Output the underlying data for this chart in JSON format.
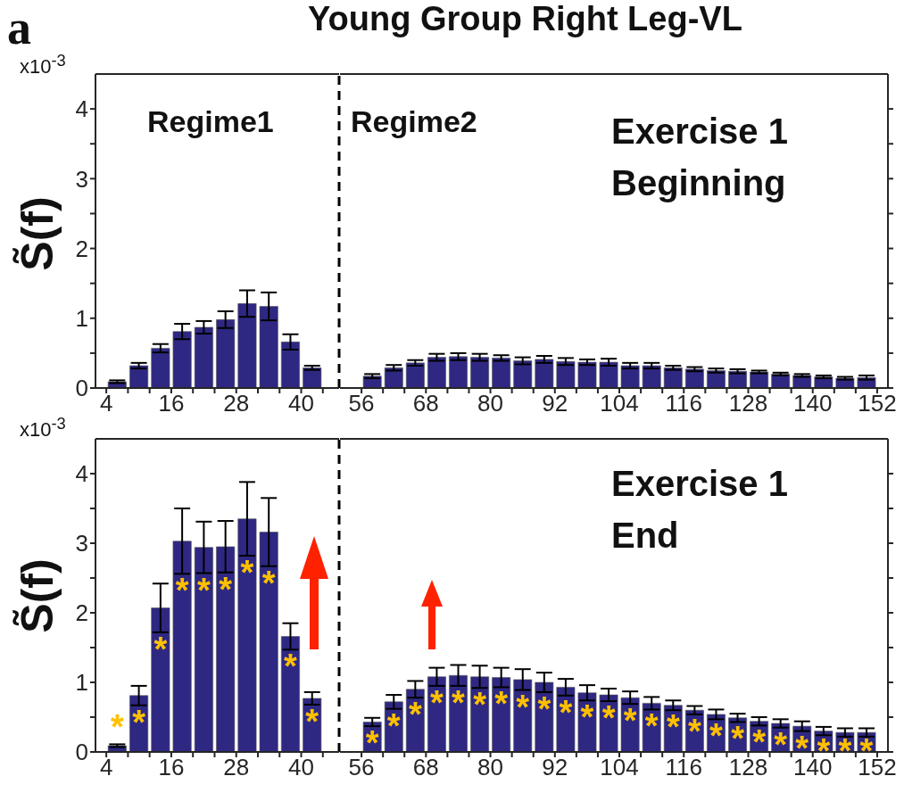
{
  "chart_data": [
    {
      "type": "bar",
      "ylabel": "S̃(f)",
      "annotations": [
        "a",
        "x10$^{-3}$",
        "Regime1"
      ],
      "x": [
        6,
        10,
        14,
        18,
        22,
        26,
        30,
        34,
        38,
        42
      ],
      "values": [
        0.09,
        0.32,
        0.57,
        0.81,
        0.87,
        0.98,
        1.21,
        1.17,
        0.66,
        0.29
      ],
      "errors": [
        0.02,
        0.04,
        0.06,
        0.11,
        0.09,
        0.12,
        0.19,
        0.2,
        0.11,
        0.03
      ],
      "color": "#2e2883",
      "xlim": [
        2,
        47
      ],
      "xticks": [
        4,
        {
          "value": 8,
          "label": null
        },
        {
          "value": 12,
          "label": null
        },
        16,
        {
          "value": 20,
          "label": null
        },
        {
          "value": 24,
          "label": null
        },
        28,
        {
          "value": 32,
          "label": null
        },
        {
          "value": 36,
          "label": null
        },
        40,
        {
          "value": 44,
          "label": null
        }
      ],
      "ylim": [
        0,
        4.5
      ],
      "yticks": [
        0,
        {
          "value": 0.5,
          "label": null
        },
        1,
        {
          "value": 1.5,
          "label": null
        },
        2,
        {
          "value": 2.5,
          "label": null
        },
        3,
        {
          "value": 3.5,
          "label": null
        },
        4
      ],
      "ref_lines": [
        {
          "axis": "x",
          "value": 47,
          "color": "#000000",
          "line_style": "dashed"
        }
      ]
    },
    {
      "type": "bar",
      "title": "Young Group Right Leg-VL",
      "annotations": [
        "Regime2",
        "Exercise 1\nBeginning"
      ],
      "x": [
        58,
        62,
        66,
        70,
        74,
        78,
        82,
        86,
        90,
        94,
        98,
        102,
        106,
        110,
        114,
        118,
        122,
        126,
        130,
        134,
        138,
        142,
        146,
        150
      ],
      "values": [
        0.17,
        0.29,
        0.36,
        0.44,
        0.45,
        0.44,
        0.43,
        0.39,
        0.41,
        0.38,
        0.37,
        0.37,
        0.32,
        0.32,
        0.29,
        0.27,
        0.25,
        0.24,
        0.23,
        0.2,
        0.18,
        0.16,
        0.14,
        0.15
      ],
      "errors": [
        0.03,
        0.04,
        0.04,
        0.05,
        0.05,
        0.05,
        0.04,
        0.05,
        0.05,
        0.05,
        0.04,
        0.05,
        0.04,
        0.04,
        0.03,
        0.03,
        0.03,
        0.03,
        0.02,
        0.02,
        0.02,
        0.02,
        0.02,
        0.03
      ],
      "color": "#2e2883",
      "xlim": [
        52,
        154
      ],
      "xticks": [
        56,
        {
          "value": 60,
          "label": null
        },
        {
          "value": 64,
          "label": null
        },
        68,
        {
          "value": 72,
          "label": null
        },
        {
          "value": 76,
          "label": null
        },
        80,
        {
          "value": 84,
          "label": null
        },
        {
          "value": 88,
          "label": null
        },
        92,
        {
          "value": 96,
          "label": null
        },
        {
          "value": 100,
          "label": null
        },
        104,
        {
          "value": 108,
          "label": null
        },
        {
          "value": 112,
          "label": null
        },
        116,
        {
          "value": 120,
          "label": null
        },
        {
          "value": 124,
          "label": null
        },
        128,
        {
          "value": 132,
          "label": null
        },
        {
          "value": 136,
          "label": null
        },
        140,
        {
          "value": 144,
          "label": null
        },
        {
          "value": 148,
          "label": null
        },
        152
      ],
      "ylim": [
        0,
        4.5
      ],
      "yticks": [
        0,
        {
          "value": 0.5,
          "label": null
        },
        1,
        {
          "value": 1.5,
          "label": null
        },
        2,
        {
          "value": 2.5,
          "label": null
        },
        3,
        {
          "value": 3.5,
          "label": null
        },
        4
      ],
      "tick_labels": "x"
    },
    {
      "type": "bar",
      "ylabel": "S̃(f)",
      "annotations": [
        "x10$^{-3}$"
      ],
      "x": [
        6,
        10,
        14,
        18,
        22,
        26,
        30,
        34,
        38,
        42
      ],
      "values": [
        0.09,
        0.81,
        2.07,
        3.03,
        2.94,
        2.95,
        3.35,
        3.16,
        1.66,
        0.77
      ],
      "errors": [
        0.02,
        0.14,
        0.35,
        0.47,
        0.37,
        0.37,
        0.53,
        0.49,
        0.19,
        0.09
      ],
      "value_labels": [
        "*",
        "*",
        "*",
        "*",
        "*",
        "*",
        "*",
        "*",
        "*",
        "*"
      ],
      "color": "#2e2883",
      "xlim": [
        2,
        47
      ],
      "xticks": [
        4,
        {
          "value": 8,
          "label": null
        },
        {
          "value": 12,
          "label": null
        },
        16,
        {
          "value": 20,
          "label": null
        },
        {
          "value": 24,
          "label": null
        },
        28,
        {
          "value": 32,
          "label": null
        },
        {
          "value": 36,
          "label": null
        },
        40,
        {
          "value": 44,
          "label": null
        }
      ],
      "ylim": [
        0,
        4.5
      ],
      "yticks": [
        0,
        {
          "value": 0.5,
          "label": null
        },
        1,
        {
          "value": 1.5,
          "label": null
        },
        2,
        {
          "value": 2.5,
          "label": null
        },
        3,
        {
          "value": 3.5,
          "label": null
        },
        4
      ],
      "ref_lines": [
        {
          "axis": "x",
          "value": 47,
          "color": "#000000",
          "line_style": "dashed"
        }
      ]
    },
    {
      "type": "bar",
      "annotations": [
        "Exercise 1\nEnd"
      ],
      "x": [
        58,
        62,
        66,
        70,
        74,
        78,
        82,
        86,
        90,
        94,
        98,
        102,
        106,
        110,
        114,
        118,
        122,
        126,
        130,
        134,
        138,
        142,
        146,
        150
      ],
      "values": [
        0.43,
        0.72,
        0.9,
        1.08,
        1.1,
        1.08,
        1.07,
        1.04,
        1.0,
        0.93,
        0.85,
        0.82,
        0.78,
        0.7,
        0.67,
        0.6,
        0.54,
        0.49,
        0.44,
        0.41,
        0.37,
        0.3,
        0.28,
        0.28
      ],
      "errors": [
        0.06,
        0.1,
        0.12,
        0.13,
        0.15,
        0.16,
        0.14,
        0.15,
        0.14,
        0.12,
        0.11,
        0.09,
        0.09,
        0.09,
        0.07,
        0.06,
        0.07,
        0.06,
        0.06,
        0.06,
        0.07,
        0.06,
        0.06,
        0.06
      ],
      "value_labels": [
        "*",
        "*",
        "*",
        "*",
        "*",
        "*",
        "*",
        "*",
        "*",
        "*",
        "*",
        "*",
        "*",
        "*",
        "*",
        "*",
        "*",
        "*",
        "*",
        "*",
        "*",
        "*",
        "*",
        "*"
      ],
      "color": "#2e2883",
      "xlim": [
        52,
        154
      ],
      "xticks": [
        56,
        {
          "value": 60,
          "label": null
        },
        {
          "value": 64,
          "label": null
        },
        68,
        {
          "value": 72,
          "label": null
        },
        {
          "value": 76,
          "label": null
        },
        80,
        {
          "value": 84,
          "label": null
        },
        {
          "value": 88,
          "label": null
        },
        92,
        {
          "value": 96,
          "label": null
        },
        {
          "value": 100,
          "label": null
        },
        104,
        {
          "value": 108,
          "label": null
        },
        {
          "value": 112,
          "label": null
        },
        116,
        {
          "value": 120,
          "label": null
        },
        {
          "value": 124,
          "label": null
        },
        128,
        {
          "value": 132,
          "label": null
        },
        {
          "value": 136,
          "label": null
        },
        140,
        {
          "value": 144,
          "label": null
        },
        {
          "value": 148,
          "label": null
        },
        152
      ],
      "ylim": [
        0,
        4.5
      ],
      "yticks": [
        0,
        {
          "value": 0.5,
          "label": null
        },
        1,
        {
          "value": 1.5,
          "label": null
        },
        2,
        {
          "value": 2.5,
          "label": null
        },
        3,
        {
          "value": 3.5,
          "label": null
        },
        4
      ],
      "tick_labels": "x"
    }
  ]
}
